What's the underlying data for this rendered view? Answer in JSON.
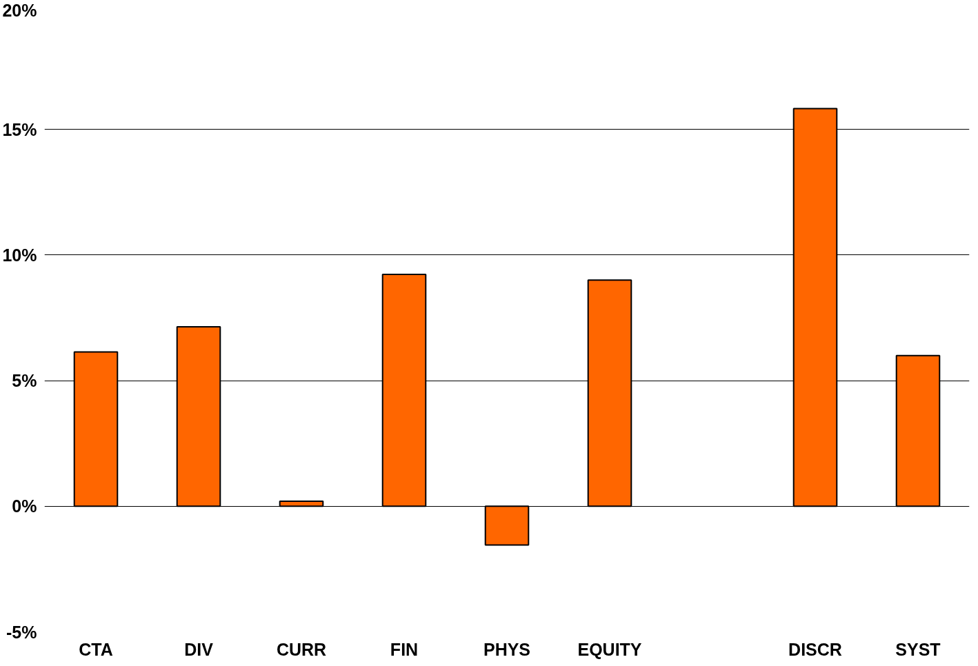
{
  "chart_data": {
    "type": "bar",
    "categories": [
      "CTA",
      "DIV",
      "CURR",
      "FIN",
      "PHYS",
      "EQUITY",
      null,
      "DISCR",
      "SYST"
    ],
    "values": [
      6.14,
      7.14,
      0.2,
      9.23,
      -1.54,
      9.0,
      null,
      15.83,
      6.0
    ],
    "color": "#ff6600",
    "ylim": [
      -5,
      20
    ],
    "yticks": [
      {
        "value": -5,
        "label": "-5%"
      },
      {
        "value": 0,
        "label": "0%"
      },
      {
        "value": 5,
        "label": "5%"
      },
      {
        "value": 10,
        "label": "10%"
      },
      {
        "value": 15,
        "label": "15%"
      },
      {
        "value": 20,
        "label": "20%"
      }
    ],
    "grid": "y"
  }
}
